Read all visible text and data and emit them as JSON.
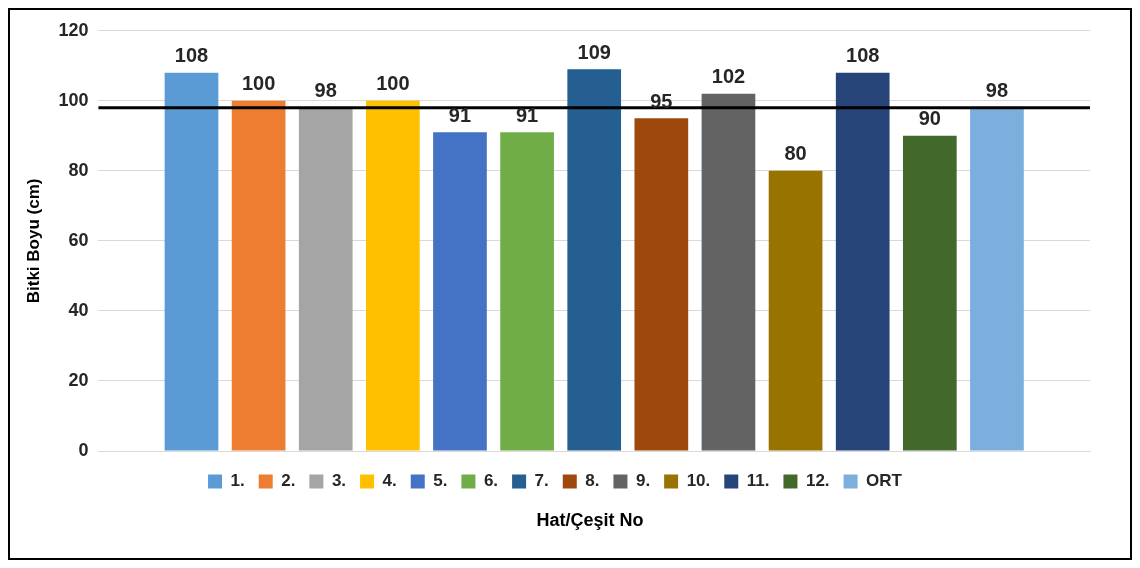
{
  "chart_data": {
    "type": "bar",
    "ylabel": "Bitki Boyu (cm)",
    "xlabel": "Hat/Çeşit No",
    "categories": [
      null
    ],
    "series": [
      {
        "name": "1.",
        "color": "#5b9bd5",
        "values": [
          108
        ]
      },
      {
        "name": "2.",
        "color": "#ed7d31",
        "values": [
          100
        ]
      },
      {
        "name": "3.",
        "color": "#a5a5a5",
        "values": [
          98
        ]
      },
      {
        "name": "4.",
        "color": "#ffc000",
        "values": [
          100
        ]
      },
      {
        "name": "5.",
        "color": "#4472c4",
        "values": [
          91
        ]
      },
      {
        "name": "6.",
        "color": "#70ad47",
        "values": [
          91
        ]
      },
      {
        "name": "7.",
        "color": "#255e91",
        "values": [
          109
        ]
      },
      {
        "name": "8.",
        "color": "#9e480e",
        "values": [
          95
        ]
      },
      {
        "name": "9.",
        "color": "#636363",
        "values": [
          102
        ]
      },
      {
        "name": "10.",
        "color": "#997300",
        "values": [
          80
        ]
      },
      {
        "name": "11.",
        "color": "#264478",
        "values": [
          108
        ]
      },
      {
        "name": "12.",
        "color": "#43682b",
        "values": [
          90
        ]
      },
      {
        "name": "ORT",
        "color": "#7cafdd",
        "values": [
          98
        ]
      }
    ],
    "ylim": [
      0,
      120
    ],
    "yticks": [
      0,
      20,
      40,
      60,
      80,
      100,
      120
    ],
    "grid": "y",
    "legend": "bottom",
    "data_labels": true,
    "ref_lines": [
      {
        "axis": "y",
        "value": 98,
        "color": "#000000"
      }
    ]
  }
}
